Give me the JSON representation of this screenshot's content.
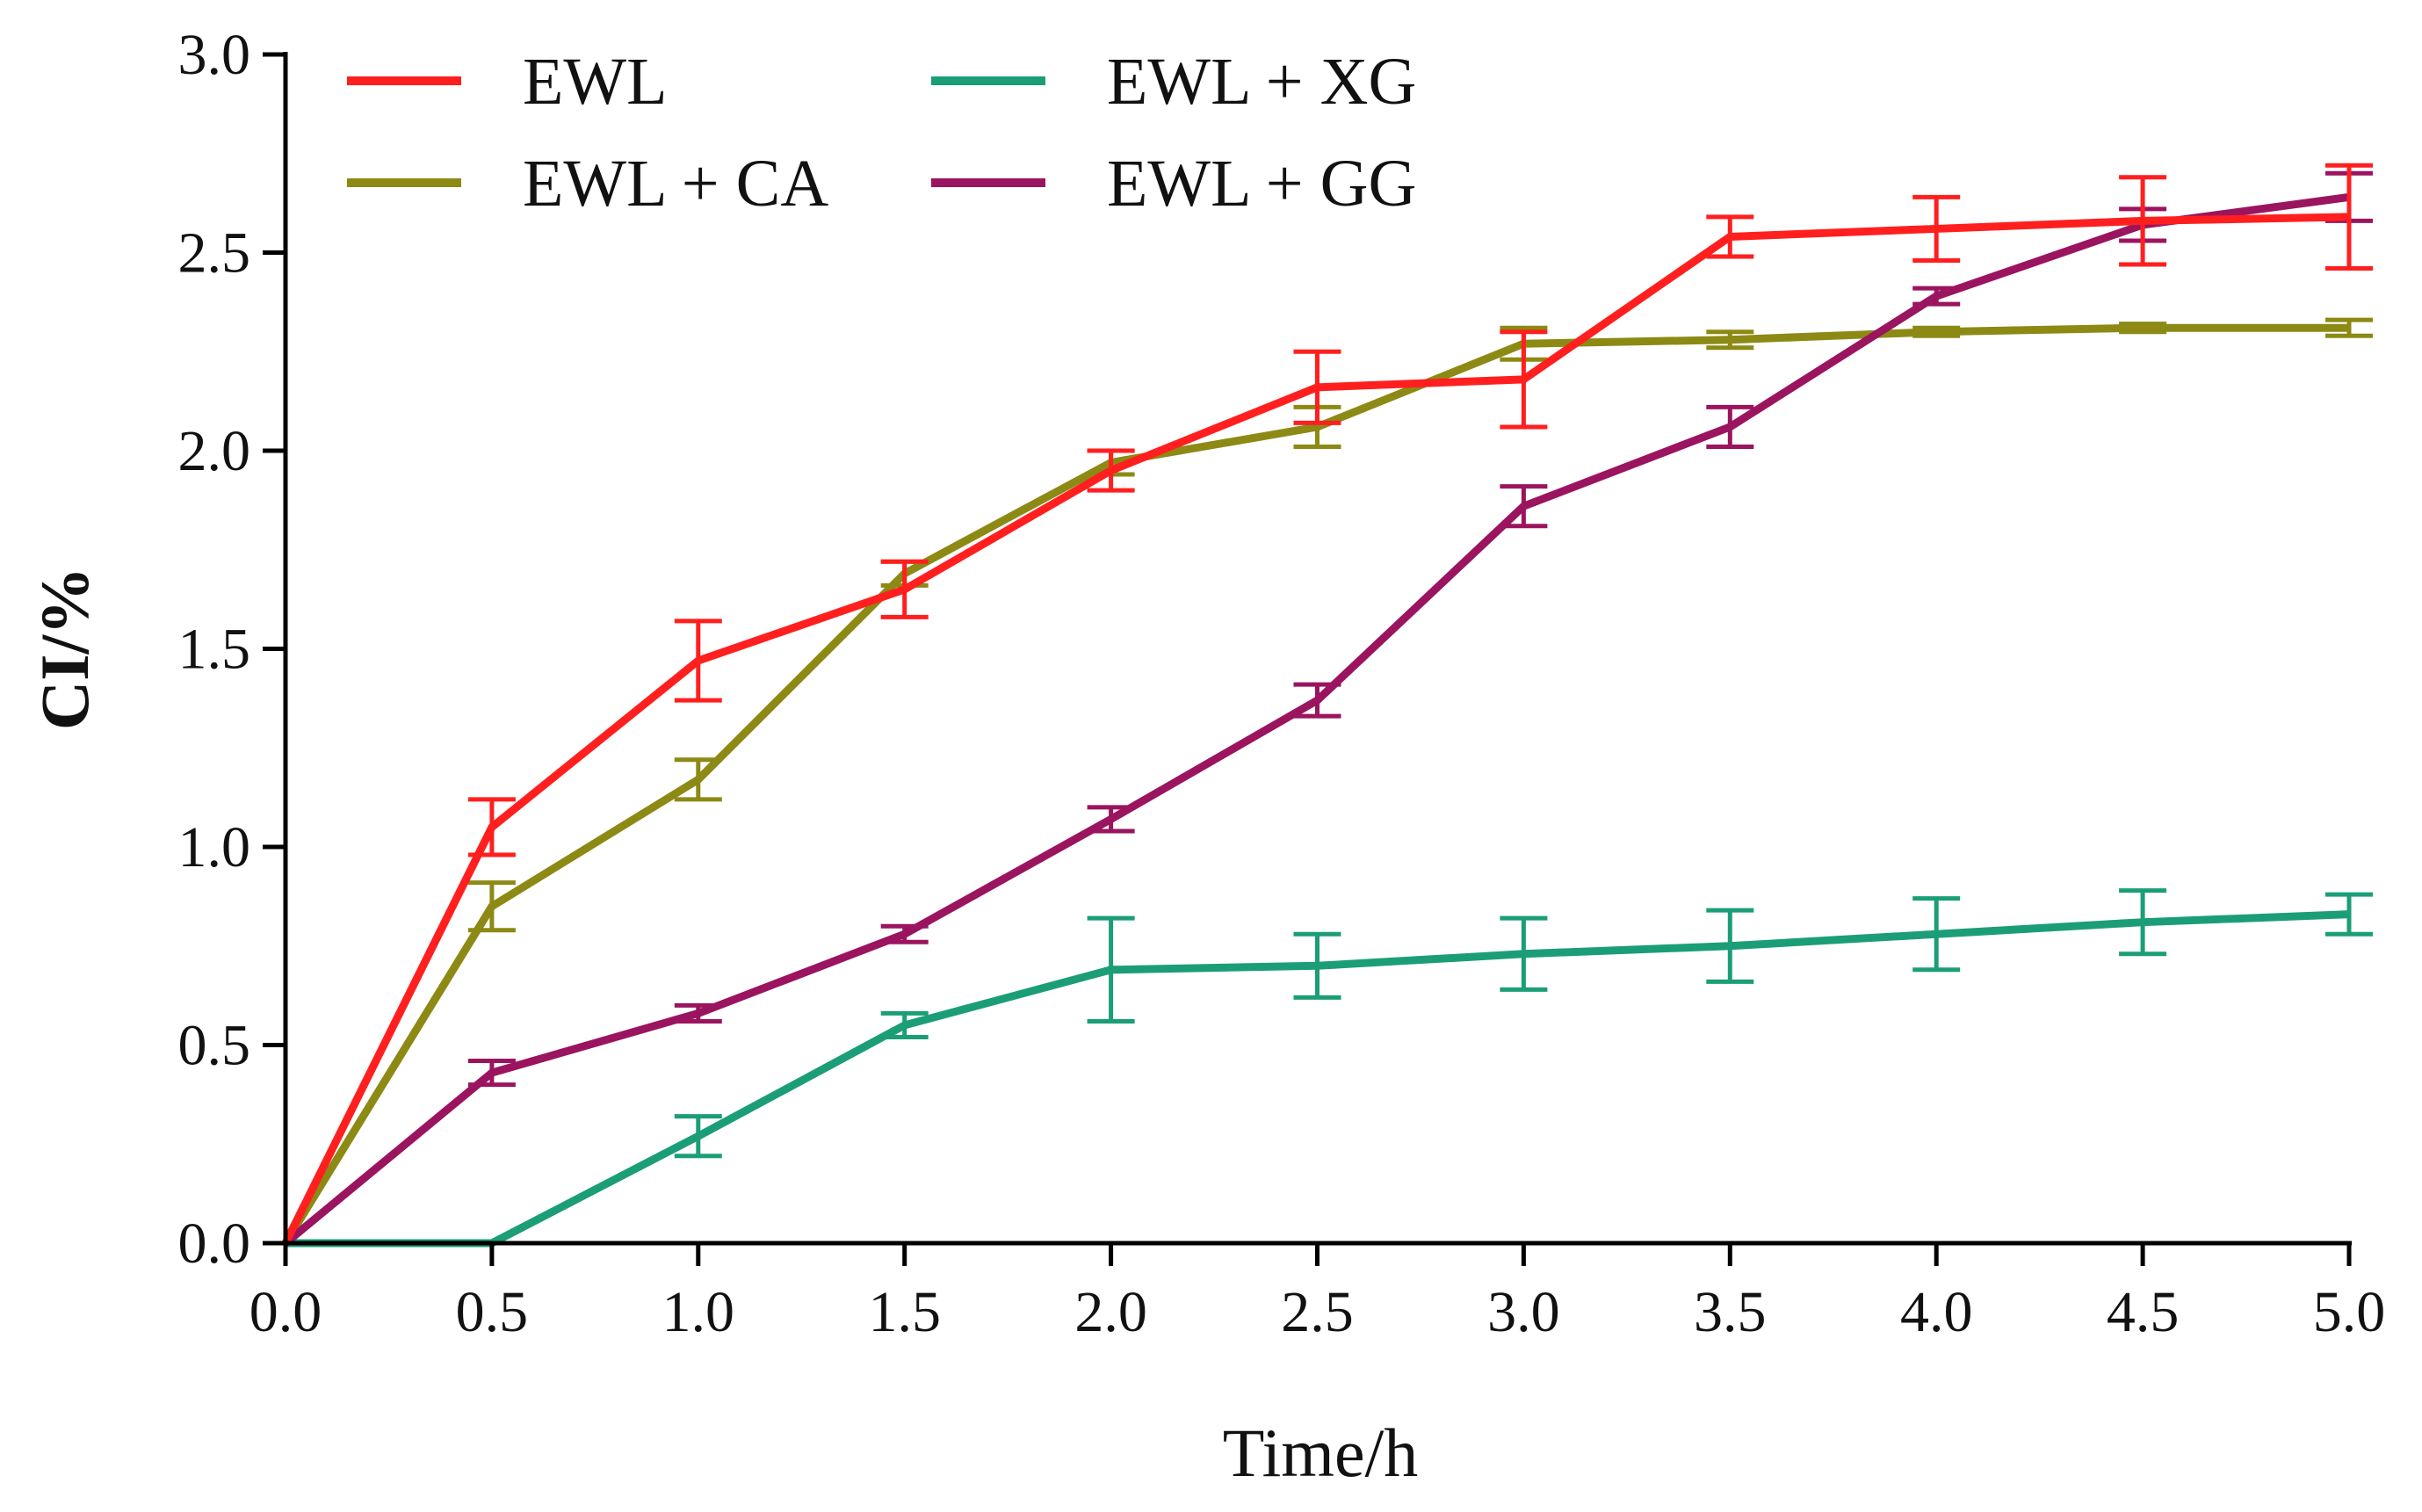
{
  "chart_data": {
    "type": "line",
    "title": "",
    "xlabel": "Time/h",
    "ylabel": "CI/%",
    "xlim": [
      0,
      5
    ],
    "ylim": [
      0,
      3
    ],
    "x_ticks": [
      "0.0",
      "0.5",
      "1.0",
      "1.5",
      "2.0",
      "2.5",
      "3.0",
      "3.5",
      "4.0",
      "4.5",
      "5.0"
    ],
    "y_ticks": [
      "0.0",
      "0.5",
      "1.0",
      "1.5",
      "2.0",
      "2.5",
      "3.0"
    ],
    "grid": false,
    "legend_position": "top-left",
    "x": [
      0,
      0.5,
      1.0,
      1.5,
      2.0,
      2.5,
      3.0,
      3.5,
      4.0,
      4.5,
      5.0
    ],
    "series": [
      {
        "name": "EWL",
        "color": "#ff1f1f",
        "values": [
          0,
          1.05,
          1.47,
          1.65,
          1.95,
          2.16,
          2.18,
          2.54,
          2.56,
          2.58,
          2.59
        ],
        "errors": [
          0,
          0.07,
          0.1,
          0.07,
          0.05,
          0.09,
          0.12,
          0.05,
          0.08,
          0.11,
          0.13
        ]
      },
      {
        "name": "EWL + CA",
        "color": "#8c8a14",
        "values": [
          0,
          0.85,
          1.17,
          1.69,
          1.97,
          2.06,
          2.27,
          2.28,
          2.3,
          2.31,
          2.31
        ],
        "errors": [
          0,
          0.06,
          0.05,
          0.03,
          0.03,
          0.05,
          0.04,
          0.02,
          0.01,
          0.01,
          0.02
        ]
      },
      {
        "name": "EWL + XG",
        "color": "#1b9e77",
        "values": [
          0,
          0,
          0.27,
          0.55,
          0.69,
          0.7,
          0.73,
          0.75,
          0.78,
          0.81,
          0.83
        ],
        "errors": [
          0,
          0,
          0.05,
          0.03,
          0.13,
          0.08,
          0.09,
          0.09,
          0.09,
          0.08,
          0.05
        ]
      },
      {
        "name": "EWL + GG",
        "color": "#9b145f",
        "values": [
          0,
          0.43,
          0.58,
          0.78,
          1.07,
          1.37,
          1.86,
          2.06,
          2.39,
          2.57,
          2.64
        ],
        "errors": [
          0,
          0.03,
          0.02,
          0.02,
          0.03,
          0.04,
          0.05,
          0.05,
          0.02,
          0.04,
          0.06
        ]
      }
    ]
  }
}
